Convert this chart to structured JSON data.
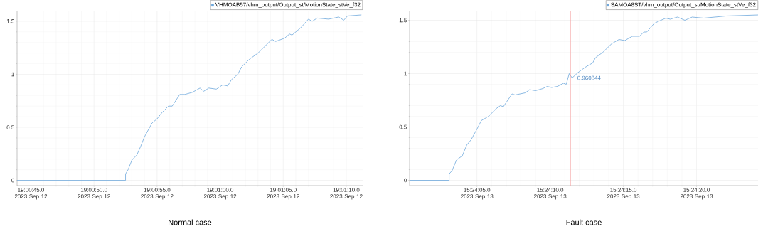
{
  "chart_data": [
    {
      "type": "line",
      "title": "Normal case",
      "grid": true,
      "legend": "top right",
      "xlim": [
        "2023-09-12T19:00:43.9",
        "2023-09-12T19:01:11.3"
      ],
      "ylim": [
        -0.05,
        1.6
      ],
      "xticks": [
        {
          "value": "2023-09-12T19:00:45",
          "label": "19:00:45.0 2023 Sep 12"
        },
        {
          "value": "2023-09-12T19:00:50",
          "label": "19:00:50.0 2023 Sep 12"
        },
        {
          "value": "2023-09-12T19:00:55",
          "label": "19:00:55.0 2023 Sep 12"
        },
        {
          "value": "2023-09-12T19:01:00",
          "label": "19:01:00.0 2023 Sep 12"
        },
        {
          "value": "2023-09-12T19:01:05",
          "label": "19:01:05.0 2023 Sep 12"
        },
        {
          "value": "2023-09-12T19:01:10",
          "label": "19:01:10.0 2023 Sep 12"
        }
      ],
      "yticks": [
        0,
        0.5,
        1,
        1.5
      ],
      "series": [
        {
          "name": "VHMOAB57/vhm_output/Output_st/MotionState_stVe_f32",
          "color": "#6fa8dc",
          "x": [
            "2023-09-12T19:00:43.9",
            "2023-09-12T19:00:52.5",
            "2023-09-12T19:00:52.5",
            "2023-09-12T19:00:52.7",
            "2023-09-12T19:00:53.0",
            "2023-09-12T19:00:53.4",
            "2023-09-12T19:00:53.7",
            "2023-09-12T19:00:54.0",
            "2023-09-12T19:00:54.6",
            "2023-09-12T19:00:55.0",
            "2023-09-12T19:00:55.4",
            "2023-09-12T19:00:55.9",
            "2023-09-12T19:00:56.2",
            "2023-09-12T19:00:56.8",
            "2023-09-12T19:00:57.2",
            "2023-09-12T19:00:57.8",
            "2023-09-12T19:00:58.4",
            "2023-09-12T19:00:58.7",
            "2023-09-12T19:00:59.1",
            "2023-09-12T19:00:59.7",
            "2023-09-12T19:01:00.2",
            "2023-09-12T19:01:00.6",
            "2023-09-12T19:01:00.9",
            "2023-09-12T19:01:01.4",
            "2023-09-12T19:01:01.7",
            "2023-09-12T19:01:02.3",
            "2023-09-12T19:01:03.0",
            "2023-09-12T19:01:03.6",
            "2023-09-12T19:01:04.1",
            "2023-09-12T19:01:04.4",
            "2023-09-12T19:01:05.1",
            "2023-09-12T19:01:05.5",
            "2023-09-12T19:01:05.7",
            "2023-09-12T19:01:06.4",
            "2023-09-12T19:01:07.0",
            "2023-09-12T19:01:07.3",
            "2023-09-12T19:01:07.7",
            "2023-09-12T19:01:08.6",
            "2023-09-12T19:01:09.4",
            "2023-09-12T19:01:09.8",
            "2023-09-12T19:01:10.1",
            "2023-09-12T19:01:11.2"
          ],
          "values": [
            0,
            0,
            0.06,
            0.1,
            0.19,
            0.24,
            0.32,
            0.41,
            0.54,
            0.58,
            0.64,
            0.7,
            0.7,
            0.81,
            0.81,
            0.83,
            0.87,
            0.84,
            0.87,
            0.86,
            0.9,
            0.89,
            0.95,
            1.0,
            1.07,
            1.14,
            1.2,
            1.27,
            1.33,
            1.31,
            1.34,
            1.38,
            1.37,
            1.44,
            1.52,
            1.5,
            1.53,
            1.52,
            1.54,
            1.51,
            1.55,
            1.56
          ]
        }
      ]
    },
    {
      "type": "line",
      "title": "Fault case",
      "grid": true,
      "legend": "top right",
      "xlim": [
        "2023-09-13T15:24:00.4",
        "2023-09-13T15:24:24.2"
      ],
      "ylim": [
        -0.05,
        1.59
      ],
      "xticks": [
        {
          "value": "2023-09-13T15:24:05",
          "label": "15:24:05.0 2023 Sep 13"
        },
        {
          "value": "2023-09-13T15:24:10",
          "label": "15:24:10.0 2023 Sep 13"
        },
        {
          "value": "2023-09-13T15:24:15",
          "label": "15:24:15.0 2023 Sep 13"
        },
        {
          "value": "2023-09-13T15:24:20",
          "label": "15:24:20.0 2023 Sep 13"
        }
      ],
      "yticks": [
        0,
        0.5,
        1,
        1.5
      ],
      "ref_lines": [
        {
          "axis": "x",
          "value": "2023-09-13T15:24:11.4",
          "color": "#f4a0a0"
        }
      ],
      "annotations": [
        {
          "text": "0.960844",
          "x": "2023-09-13T15:24:11.5",
          "y": 0.96
        }
      ],
      "series": [
        {
          "name": "SAMOA8ST/vhm_output/Output_st/MotionState_stVe_f32",
          "color": "#6fa8dc",
          "x": [
            "2023-09-13T15:24:00.4",
            "2023-09-13T15:24:03.1",
            "2023-09-13T15:24:03.1",
            "2023-09-13T15:24:03.3",
            "2023-09-13T15:24:03.6",
            "2023-09-13T15:24:04.0",
            "2023-09-13T15:24:04.3",
            "2023-09-13T15:24:04.6",
            "2023-09-13T15:24:05.0",
            "2023-09-13T15:24:05.3",
            "2023-09-13T15:24:05.8",
            "2023-09-13T15:24:06.3",
            "2023-09-13T15:24:06.6",
            "2023-09-13T15:24:06.8",
            "2023-09-13T15:24:07.4",
            "2023-09-13T15:24:07.6",
            "2023-09-13T15:24:08.3",
            "2023-09-13T15:24:08.6",
            "2023-09-13T15:24:09.0",
            "2023-09-13T15:24:09.5",
            "2023-09-13T15:24:09.8",
            "2023-09-13T15:24:10.1",
            "2023-09-13T15:24:10.5",
            "2023-09-13T15:24:10.9",
            "2023-09-13T15:24:11.1",
            "2023-09-13T15:24:11.3",
            "2023-09-13T15:24:11.5",
            "2023-09-13T15:24:11.9",
            "2023-09-13T15:24:12.4",
            "2023-09-13T15:24:12.9",
            "2023-09-13T15:24:13.1",
            "2023-09-13T15:24:13.6",
            "2023-09-13T15:24:14.2",
            "2023-09-13T15:24:14.7",
            "2023-09-13T15:24:15.1",
            "2023-09-13T15:24:15.6",
            "2023-09-13T15:24:16.1",
            "2023-09-13T15:24:16.4",
            "2023-09-13T15:24:16.6",
            "2023-09-13T15:24:17.1",
            "2023-09-13T15:24:17.4",
            "2023-09-13T15:24:17.9",
            "2023-09-13T15:24:18.2",
            "2023-09-13T15:24:18.7",
            "2023-09-13T15:24:19.2",
            "2023-09-13T15:24:19.7",
            "2023-09-13T15:24:20.5",
            "2023-09-13T15:24:22.0",
            "2023-09-13T15:24:24.2"
          ],
          "values": [
            0,
            0,
            0.06,
            0.09,
            0.19,
            0.23,
            0.33,
            0.38,
            0.48,
            0.56,
            0.6,
            0.67,
            0.7,
            0.69,
            0.81,
            0.8,
            0.82,
            0.85,
            0.84,
            0.86,
            0.88,
            0.87,
            0.88,
            0.91,
            0.9,
            1.0,
            0.96,
            1.01,
            1.06,
            1.1,
            1.15,
            1.2,
            1.28,
            1.32,
            1.31,
            1.35,
            1.35,
            1.39,
            1.39,
            1.47,
            1.49,
            1.52,
            1.51,
            1.53,
            1.5,
            1.53,
            1.52,
            1.54,
            1.55
          ]
        }
      ]
    }
  ]
}
